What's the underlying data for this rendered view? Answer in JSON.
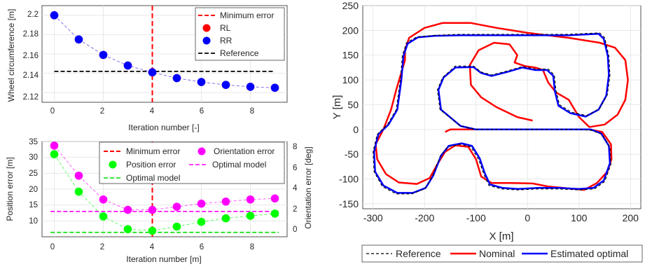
{
  "chart_data": [
    {
      "type": "scatter",
      "xlabel": "Iteration number [-]",
      "ylabel": "Wheel circumference [m]",
      "xlim": [
        -0.5,
        9.5
      ],
      "ylim": [
        2.11,
        2.21
      ],
      "xticks": [
        0,
        2,
        4,
        6,
        8
      ],
      "yticks": [
        2.12,
        2.14,
        2.16,
        2.18,
        2.2
      ],
      "grid": true,
      "legend_position": "top-right",
      "x": [
        0,
        1,
        2,
        3,
        4,
        5,
        6,
        7,
        8,
        9
      ],
      "series": [
        {
          "name": "RL",
          "color": "#ff0000",
          "values": [
            2.2,
            2.175,
            2.159,
            2.148,
            2.141,
            2.135,
            2.131,
            2.128,
            2.126,
            2.125
          ]
        },
        {
          "name": "RR",
          "color": "#0000ff",
          "values": [
            2.2,
            2.175,
            2.159,
            2.148,
            2.141,
            2.135,
            2.131,
            2.128,
            2.126,
            2.125
          ]
        }
      ],
      "reference": {
        "name": "Reference",
        "value": 2.142
      },
      "minimum_error": {
        "name": "Minimum error",
        "x": 4
      }
    },
    {
      "type": "scatter",
      "xlabel": "Iteration number [m]",
      "ylabel": "Position error [m]",
      "y2label": "Orientation error [deg]",
      "xlim": [
        -0.5,
        9.5
      ],
      "ylim": [
        5,
        35
      ],
      "y2lim": [
        -0.6,
        8.6
      ],
      "xticks": [
        0,
        2,
        4,
        6,
        8
      ],
      "yticks": [
        10,
        15,
        20,
        25,
        30,
        35
      ],
      "y2ticks": [
        0,
        2,
        4,
        6,
        8
      ],
      "grid": true,
      "legend_position": "top-right",
      "x": [
        0,
        1,
        2,
        3,
        4,
        5,
        6,
        7,
        8,
        9
      ],
      "series": [
        {
          "name": "Position error",
          "axis": "left",
          "color": "#00ff00",
          "values": [
            31,
            19.2,
            11.4,
            7.4,
            6.9,
            8.2,
            9.7,
            10.8,
            11.6,
            12.3
          ]
        },
        {
          "name": "Orientation error",
          "axis": "right",
          "color": "#ff00ff",
          "values": [
            8.2,
            5.3,
            3.0,
            2.0,
            2.0,
            2.3,
            2.6,
            2.8,
            3.0,
            3.1
          ]
        }
      ],
      "optimal_models": [
        {
          "name": "Optimal model",
          "axis": "right",
          "color": "#ff00ff",
          "value": 1.85
        },
        {
          "name": "Optimal model",
          "axis": "left",
          "color": "#00dd00",
          "value": 6.4
        }
      ],
      "minimum_error": {
        "name": "Minimum error",
        "x": 4
      }
    },
    {
      "type": "line",
      "xlabel": "X [m]",
      "ylabel": "Y [m]",
      "xlim": [
        -320,
        220
      ],
      "ylim": [
        -160,
        250
      ],
      "xticks": [
        -300,
        -200,
        -100,
        0,
        100,
        200
      ],
      "yticks": [
        -150,
        -100,
        -50,
        0,
        50,
        100,
        150,
        200,
        250
      ],
      "grid": true,
      "legend_position": "bottom-outside",
      "series": [
        {
          "name": "Reference",
          "color": "#000000",
          "style": "dashed",
          "points": [
            [
              0,
              0
            ],
            [
              -100,
              0
            ],
            [
              -130,
              7
            ],
            [
              -170,
              40
            ],
            [
              -175,
              80
            ],
            [
              -165,
              105
            ],
            [
              -140,
              128
            ],
            [
              -105,
              128
            ],
            [
              -90,
              116
            ],
            [
              -70,
              110
            ],
            [
              -40,
              118
            ],
            [
              -10,
              127
            ],
            [
              15,
              122
            ],
            [
              40,
              122
            ],
            [
              52,
              110
            ],
            [
              55,
              80
            ],
            [
              62,
              50
            ],
            [
              85,
              35
            ],
            [
              115,
              28
            ],
            [
              140,
              42
            ],
            [
              155,
              70
            ],
            [
              160,
              110
            ],
            [
              158,
              148
            ],
            [
              150,
              185
            ],
            [
              140,
              195
            ],
            [
              80,
              192
            ],
            [
              -20,
              192
            ],
            [
              -130,
              192
            ],
            [
              -180,
              190
            ],
            [
              -215,
              187
            ],
            [
              -235,
              175
            ],
            [
              -243,
              150
            ],
            [
              -247,
              100
            ],
            [
              -255,
              40
            ],
            [
              -272,
              10
            ],
            [
              -292,
              -10
            ],
            [
              -300,
              -45
            ],
            [
              -298,
              -85
            ],
            [
              -282,
              -115
            ],
            [
              -255,
              -130
            ],
            [
              -225,
              -130
            ],
            [
              -200,
              -120
            ],
            [
              -185,
              -95
            ],
            [
              -170,
              -55
            ],
            [
              -155,
              -35
            ],
            [
              -130,
              -30
            ],
            [
              -110,
              -35
            ],
            [
              -95,
              -60
            ],
            [
              -85,
              -90
            ],
            [
              -75,
              -113
            ],
            [
              -50,
              -120
            ],
            [
              -20,
              -122
            ],
            [
              20,
              -120
            ],
            [
              60,
              -120
            ],
            [
              100,
              -122
            ],
            [
              130,
              -120
            ],
            [
              150,
              -105
            ],
            [
              162,
              -70
            ],
            [
              160,
              -35
            ],
            [
              145,
              -10
            ],
            [
              125,
              -2
            ],
            [
              100,
              0
            ],
            [
              60,
              0
            ],
            [
              20,
              0
            ],
            [
              0,
              0
            ]
          ]
        },
        {
          "name": "Nominal",
          "color": "#ff0000",
          "style": "solid",
          "points": [
            [
              10,
              18
            ],
            [
              -20,
              25
            ],
            [
              -60,
              45
            ],
            [
              -90,
              65
            ],
            [
              -110,
              90
            ],
            [
              -112,
              130
            ],
            [
              -95,
              160
            ],
            [
              -65,
              175
            ],
            [
              -35,
              172
            ],
            [
              -20,
              150
            ],
            [
              -25,
              135
            ],
            [
              -5,
              128
            ],
            [
              15,
              125
            ],
            [
              30,
              120
            ],
            [
              40,
              95
            ],
            [
              55,
              75
            ],
            [
              80,
              60
            ],
            [
              100,
              25
            ],
            [
              120,
              5
            ],
            [
              150,
              10
            ],
            [
              175,
              30
            ],
            [
              190,
              60
            ],
            [
              195,
              100
            ],
            [
              190,
              140
            ],
            [
              170,
              165
            ],
            [
              140,
              175
            ],
            [
              80,
              185
            ],
            [
              0,
              195
            ],
            [
              -60,
              205
            ],
            [
              -110,
              215
            ],
            [
              -165,
              215
            ],
            [
              -200,
              205
            ],
            [
              -230,
              185
            ],
            [
              -238,
              160
            ],
            [
              -238,
              140
            ],
            [
              -245,
              115
            ],
            [
              -255,
              80
            ],
            [
              -265,
              40
            ],
            [
              -280,
              0
            ],
            [
              -295,
              -30
            ],
            [
              -292,
              -60
            ],
            [
              -275,
              -90
            ],
            [
              -250,
              -107
            ],
            [
              -215,
              -110
            ],
            [
              -190,
              -98
            ],
            [
              -175,
              -70
            ],
            [
              -160,
              -45
            ],
            [
              -140,
              -32
            ],
            [
              -115,
              -35
            ],
            [
              -100,
              -60
            ],
            [
              -90,
              -95
            ],
            [
              -70,
              -108
            ],
            [
              -30,
              -108
            ],
            [
              10,
              -109
            ],
            [
              40,
              -115
            ],
            [
              70,
              -118
            ],
            [
              110,
              -122
            ],
            [
              135,
              -108
            ],
            [
              155,
              -85
            ],
            [
              163,
              -60
            ],
            [
              162,
              -30
            ],
            [
              145,
              -5
            ],
            [
              120,
              0
            ],
            [
              100,
              0
            ],
            [
              40,
              0
            ],
            [
              0,
              0
            ],
            [
              -150,
              0
            ],
            [
              -160,
              -5
            ]
          ]
        },
        {
          "name": "Estimated optimal",
          "color": "#0000ff",
          "style": "solid",
          "points": [
            [
              0,
              0
            ],
            [
              -100,
              0
            ],
            [
              -130,
              7
            ],
            [
              -168,
              40
            ],
            [
              -173,
              80
            ],
            [
              -163,
              105
            ],
            [
              -140,
              125
            ],
            [
              -105,
              126
            ],
            [
              -90,
              114
            ],
            [
              -70,
              108
            ],
            [
              -40,
              116
            ],
            [
              -10,
              125
            ],
            [
              15,
              120
            ],
            [
              38,
              120
            ],
            [
              50,
              108
            ],
            [
              53,
              78
            ],
            [
              60,
              48
            ],
            [
              83,
              33
            ],
            [
              113,
              26
            ],
            [
              138,
              40
            ],
            [
              153,
              68
            ],
            [
              158,
              110
            ],
            [
              156,
              148
            ],
            [
              148,
              183
            ],
            [
              138,
              193
            ],
            [
              80,
              190
            ],
            [
              -20,
              190
            ],
            [
              -130,
              190
            ],
            [
              -180,
              189
            ],
            [
              -213,
              186
            ],
            [
              -233,
              173
            ],
            [
              -241,
              148
            ],
            [
              -245,
              100
            ],
            [
              -253,
              40
            ],
            [
              -270,
              10
            ],
            [
              -290,
              -10
            ],
            [
              -298,
              -45
            ],
            [
              -296,
              -85
            ],
            [
              -280,
              -113
            ],
            [
              -253,
              -128
            ],
            [
              -223,
              -128
            ],
            [
              -198,
              -118
            ],
            [
              -183,
              -93
            ],
            [
              -168,
              -53
            ],
            [
              -153,
              -33
            ],
            [
              -128,
              -28
            ],
            [
              -108,
              -33
            ],
            [
              -93,
              -58
            ],
            [
              -83,
              -88
            ],
            [
              -73,
              -111
            ],
            [
              -48,
              -118
            ],
            [
              -18,
              -120
            ],
            [
              20,
              -118
            ],
            [
              60,
              -118
            ],
            [
              100,
              -120
            ],
            [
              128,
              -118
            ],
            [
              148,
              -103
            ],
            [
              160,
              -68
            ],
            [
              158,
              -33
            ],
            [
              143,
              -8
            ],
            [
              123,
              0
            ],
            [
              100,
              0
            ],
            [
              60,
              0
            ],
            [
              20,
              0
            ],
            [
              0,
              0
            ]
          ]
        }
      ]
    }
  ],
  "axis_text": {
    "top": {
      "xlabel": "Iteration number [-]",
      "ylabel": "Wheel circumference [m]",
      "xticks": [
        "0",
        "2",
        "4",
        "6",
        "8"
      ],
      "yticks": [
        "2.2",
        "2.18",
        "2.16",
        "2.14",
        "2.12"
      ]
    },
    "bottom": {
      "xlabel": "Iteration number [m]",
      "ylabel": "Position error [m]",
      "y2label": "Orientation error [deg]",
      "xticks": [
        "0",
        "2",
        "4",
        "6",
        "8"
      ],
      "yticks": [
        "35",
        "30",
        "25",
        "20",
        "15",
        "10"
      ],
      "y2ticks": [
        "8",
        "6",
        "4",
        "2",
        "0"
      ]
    },
    "map": {
      "xlabel": "X [m]",
      "ylabel": "Y [m]",
      "xticks": [
        "-300",
        "-200",
        "-100",
        "0",
        "100",
        "200"
      ],
      "yticks": [
        "250",
        "200",
        "150",
        "100",
        "50",
        "0",
        "-50",
        "-100",
        "-150"
      ]
    }
  },
  "legends": {
    "top": [
      "Minimum error",
      "RL",
      "RR",
      "Reference"
    ],
    "bottom": [
      "Minimum error",
      "Orientation error",
      "Position error",
      "Optimal model",
      "Optimal model"
    ],
    "map": [
      "Reference",
      "Nominal",
      "Estimated optimal"
    ]
  }
}
